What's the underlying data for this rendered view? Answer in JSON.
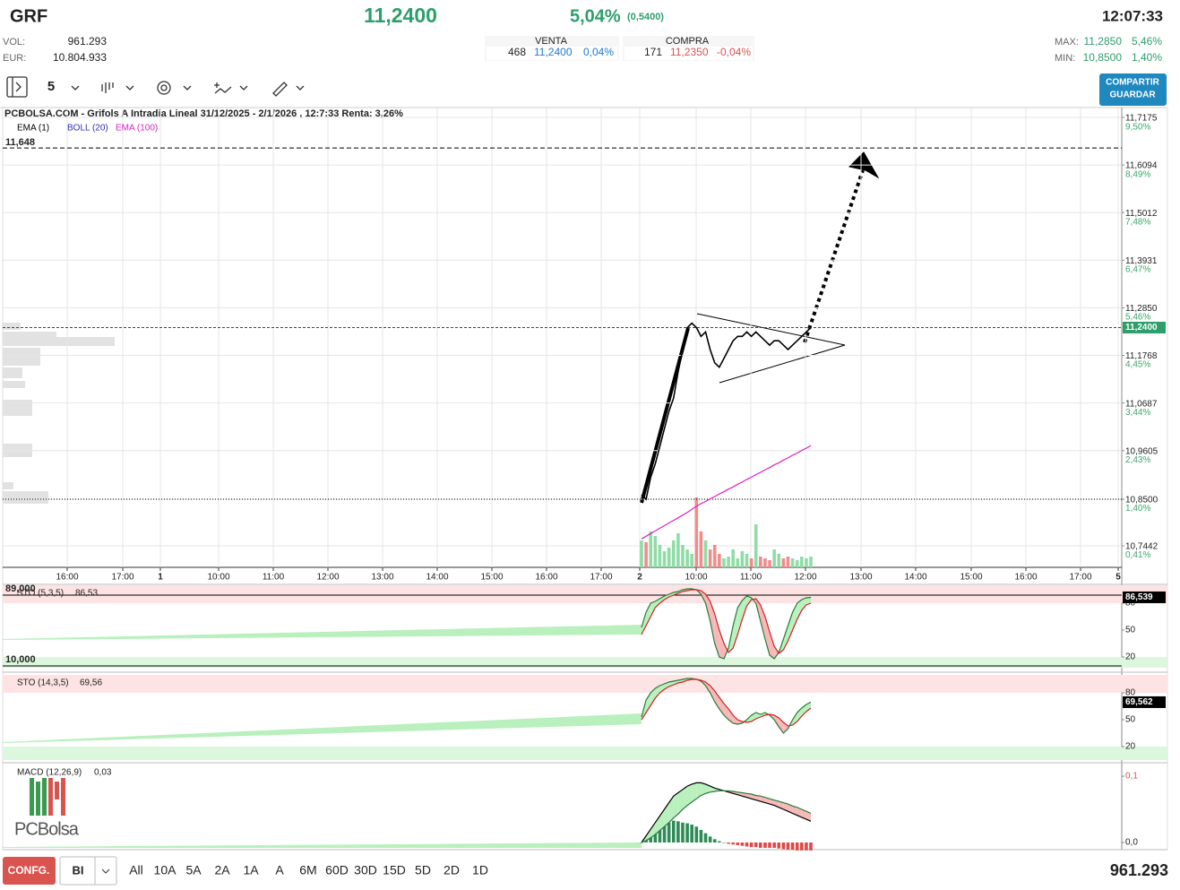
{
  "header": {
    "ticker": "GRF",
    "price": "11,2400",
    "change_pct": "5,04%",
    "change": "(0,5400)",
    "time": "12:07:33",
    "vol_label": "VOL:",
    "vol": "961.293",
    "eur_label": "EUR:",
    "eur": "10.804.933",
    "venta_label": "VENTA",
    "venta_qty": "468",
    "venta_price": "11,2400",
    "venta_pct": "0,04%",
    "compra_label": "COMPRA",
    "compra_qty": "171",
    "compra_price": "11,2350",
    "compra_pct": "-0,04%",
    "max_label": "MAX:",
    "max": "11,2850",
    "max_pct": "5,46%",
    "min_label": "MIN:",
    "min": "10,8500",
    "min_pct": "1,40%"
  },
  "toolbar": {
    "interval": "5",
    "share": [
      "COMPARTIR",
      "GUARDAR"
    ]
  },
  "chart_data": [
    {
      "type": "line",
      "title": "PCBOLSA.COM - Grifols A Intradia Lineal 31/12/2025 - 2/1/2026 , 12:7:33 Renta: 3,26%",
      "x_tick_labels": [
        "16:00",
        "17:00",
        "1",
        "10:00",
        "11:00",
        "12:00",
        "13:00",
        "14:00",
        "15:00",
        "16:00",
        "17:00",
        "2",
        "10:00",
        "11:00",
        "12:00",
        "13:00",
        "14:00",
        "15:00",
        "16:00",
        "17:00",
        "5"
      ],
      "series": [
        {
          "name": "EMA (1)",
          "color": "#000000",
          "values": [
            10.86,
            10.85,
            10.9,
            10.93,
            10.97,
            11.01,
            11.05,
            11.08,
            11.14,
            11.19,
            11.24,
            11.25,
            11.24,
            11.22,
            11.23,
            11.19,
            11.16,
            11.15,
            11.17,
            11.19,
            11.21,
            11.22,
            11.22,
            11.23,
            11.22,
            11.23,
            11.22,
            11.21,
            11.2,
            11.21,
            11.21,
            11.2,
            11.19,
            11.2,
            11.21,
            11.22,
            11.23,
            11.24
          ]
        },
        {
          "name": "BOLL (20)",
          "color": "#3030c0",
          "values": [
            null,
            null,
            null,
            null,
            null,
            null,
            null,
            null,
            null,
            null,
            null,
            null,
            null,
            null,
            null,
            null,
            null,
            null,
            null,
            null,
            null,
            null,
            null,
            null,
            null,
            null,
            null,
            null,
            null,
            null,
            null,
            null,
            null,
            null,
            null,
            null,
            null,
            null
          ]
        },
        {
          "name": "EMA (100)",
          "color": "#e020c0",
          "values": [
            10.76,
            10.766,
            10.772,
            10.778,
            10.784,
            10.79,
            10.796,
            10.802,
            10.808,
            10.814,
            10.82,
            10.827,
            10.834,
            10.84,
            10.845,
            10.851,
            10.856,
            10.862,
            10.867,
            10.873,
            10.878,
            10.884,
            10.889,
            10.895,
            10.9,
            10.906,
            10.911,
            10.917,
            10.922,
            10.928,
            10.933,
            10.939,
            10.944,
            10.95,
            10.955,
            10.961,
            10.966,
            10.972
          ]
        }
      ],
      "volume": {
        "up_color": "#8fdca6",
        "down_color": "#f28b8b",
        "values": [
          30000,
          28000,
          40000,
          35000,
          25000,
          18000,
          22000,
          30000,
          38000,
          25000,
          20000,
          15000,
          78000,
          40000,
          30000,
          20000,
          25000,
          15000,
          10000,
          12000,
          20000,
          10000,
          18000,
          15000,
          10000,
          48000,
          12000,
          10000,
          8000,
          20000,
          15000,
          10000,
          12000,
          10000,
          8000,
          12000,
          10000,
          12000
        ]
      },
      "ylim": [
        10.6953,
        11.7256
      ],
      "yticks": [
        {
          "value": 11.7175,
          "label": "11,7175"
        },
        {
          "value": 11.6094,
          "label": "11,6094"
        },
        {
          "value": 11.5012,
          "label": "11,5012"
        },
        {
          "value": 11.3931,
          "label": "11,3931"
        },
        {
          "value": 11.285,
          "label": "11,2850"
        },
        {
          "value": 11.1768,
          "label": "11,1768"
        },
        {
          "value": 11.0687,
          "label": "11,0687"
        },
        {
          "value": 10.9605,
          "label": "10,9605"
        },
        {
          "value": 10.85,
          "label": "10,8500"
        },
        {
          "value": 10.7442,
          "label": "10,7442"
        }
      ],
      "y2lim": [
        -0.04,
        9.59
      ],
      "y2ticks": [
        {
          "value": 9.5,
          "label": "9,50%"
        },
        {
          "value": 8.49,
          "label": "8,49%"
        },
        {
          "value": 7.48,
          "label": "7,48%"
        },
        {
          "value": 6.47,
          "label": "6,47%"
        },
        {
          "value": 5.46,
          "label": "5,46%"
        },
        {
          "value": 4.45,
          "label": "4,45%"
        },
        {
          "value": 3.44,
          "label": "3,44%"
        },
        {
          "value": 2.43,
          "label": "2,43%"
        },
        {
          "value": 1.4,
          "label": "1,40%"
        },
        {
          "value": 0.41,
          "label": "0,41%"
        }
      ],
      "current": {
        "value": 11.24,
        "label": "11,2400",
        "color": "#2e9e6b"
      },
      "hlines": [
        {
          "value": 11.648,
          "label": "11,648",
          "style": "dashed"
        },
        {
          "value": 10.85,
          "style": "dotted"
        }
      ],
      "grid": true
    },
    {
      "type": "stochastic",
      "title": "STO (5,3,5)",
      "legend_value": "86,53",
      "last_label": "86,539",
      "series": [
        {
          "color": "#2a7a3a",
          "values": [
            53,
            70,
            80,
            82,
            85,
            88,
            90,
            92,
            93,
            95,
            96,
            96,
            95,
            90,
            80,
            60,
            35,
            20,
            18,
            30,
            55,
            75,
            83,
            88,
            86,
            80,
            60,
            40,
            22,
            18,
            25,
            40,
            55,
            70,
            80,
            84,
            86,
            86.539
          ]
        },
        {
          "color": "#d02020",
          "values": [
            45,
            55,
            65,
            75,
            80,
            84,
            87,
            89,
            91,
            93,
            94,
            95,
            95,
            94,
            90,
            82,
            68,
            50,
            35,
            25,
            30,
            45,
            62,
            77,
            84,
            85,
            78,
            65,
            48,
            32,
            24,
            28,
            38,
            50,
            62,
            72,
            78,
            80
          ]
        }
      ],
      "ylim": [
        8,
        100
      ],
      "yticks": [
        20,
        50,
        80
      ],
      "hlines": [
        {
          "value": 89,
          "label": "89,000"
        },
        {
          "value": 10,
          "label": "10,000"
        }
      ]
    },
    {
      "type": "stochastic",
      "title": "STO (14,3,5)",
      "legend_value": "69,56",
      "last_label": "69,562",
      "series": [
        {
          "color": "#2a7a3a",
          "values": [
            53,
            72,
            80,
            85,
            88,
            90,
            92,
            93,
            94,
            95,
            96,
            96,
            95,
            93,
            88,
            80,
            70,
            62,
            55,
            50,
            46,
            45,
            46,
            50,
            55,
            58,
            56,
            58,
            55,
            50,
            42,
            35,
            40,
            50,
            58,
            63,
            67,
            69.562
          ]
        },
        {
          "color": "#d02020",
          "values": [
            50,
            58,
            66,
            74,
            80,
            84,
            87,
            89,
            91,
            92,
            94,
            95,
            95,
            94,
            92,
            88,
            82,
            75,
            68,
            62,
            55,
            50,
            48,
            47,
            48,
            51,
            53,
            55,
            56,
            55,
            52,
            47,
            43,
            44,
            48,
            54,
            59,
            63
          ]
        }
      ],
      "ylim": [
        5,
        100
      ],
      "yticks": [
        20,
        50,
        80
      ]
    },
    {
      "type": "macd",
      "title": "MACD (12,26,9)",
      "legend_value": "0,03",
      "series": [
        {
          "color": "#000000",
          "values": [
            0,
            0.01,
            0.02,
            0.03,
            0.04,
            0.05,
            0.06,
            0.07,
            0.075,
            0.08,
            0.085,
            0.088,
            0.09,
            0.09,
            0.088,
            0.085,
            0.082,
            0.08,
            0.078,
            0.076,
            0.074,
            0.072,
            0.07,
            0.068,
            0.066,
            0.064,
            0.062,
            0.06,
            0.058,
            0.056,
            0.053,
            0.05,
            0.047,
            0.044,
            0.041,
            0.038,
            0.035,
            0.032
          ]
        },
        {
          "color": "#2a7a3a",
          "values": [
            0,
            0.003,
            0.007,
            0.012,
            0.018,
            0.024,
            0.03,
            0.037,
            0.043,
            0.05,
            0.056,
            0.061,
            0.066,
            0.071,
            0.074,
            0.076,
            0.077,
            0.078,
            0.078,
            0.078,
            0.077,
            0.076,
            0.075,
            0.074,
            0.073,
            0.071,
            0.07,
            0.068,
            0.066,
            0.064,
            0.062,
            0.06,
            0.058,
            0.055,
            0.053,
            0.05,
            0.047,
            0.044
          ]
        }
      ],
      "histogram": {
        "up_color": "#2e8b57",
        "down_color": "#e04848",
        "values": [
          0,
          0.007,
          0.013,
          0.018,
          0.022,
          0.026,
          0.03,
          0.033,
          0.032,
          0.03,
          0.029,
          0.027,
          0.024,
          0.019,
          0.014,
          0.009,
          0.005,
          0.002,
          0,
          -0.002,
          -0.003,
          -0.004,
          -0.005,
          -0.006,
          -0.007,
          -0.007,
          -0.008,
          -0.008,
          -0.008,
          -0.008,
          -0.009,
          -0.01,
          -0.011,
          -0.011,
          -0.012,
          -0.012,
          -0.012,
          -0.012
        ]
      },
      "ylim": [
        -0.0108,
        0.1176
      ],
      "yticks": [
        {
          "value": 0.1,
          "label": "0,1"
        },
        {
          "value": 0,
          "label": "0,0"
        }
      ]
    }
  ],
  "logo": "PCBolsa",
  "footer": {
    "config": "CONFG.",
    "mode": "BI",
    "ranges": [
      "All",
      "10A",
      "5A",
      "2A",
      "1A",
      "A",
      "6M",
      "60D",
      "30D",
      "15D",
      "5D",
      "2D",
      "1D"
    ],
    "volume": "961.293"
  }
}
